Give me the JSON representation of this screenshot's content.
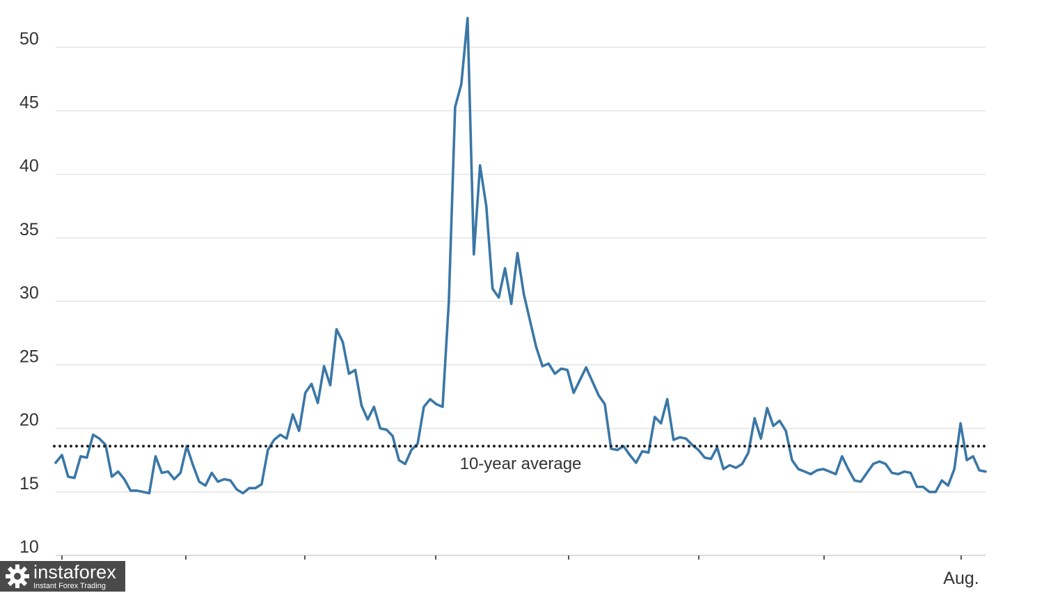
{
  "chart_data": {
    "type": "line",
    "title": "",
    "xlabel": "",
    "ylabel": "",
    "ylim": [
      10,
      52.5
    ],
    "yticks": [
      10,
      15,
      20,
      25,
      30,
      35,
      40,
      45,
      50
    ],
    "x_tick_labels": [
      "",
      "",
      "",
      "",
      "",
      "",
      "",
      "Aug."
    ],
    "grid": true,
    "legend": "none",
    "series": [
      {
        "color": "#3a77a6",
        "values": [
          17.3,
          17.9,
          16.2,
          16.1,
          17.8,
          17.7,
          19.5,
          19.2,
          18.7,
          16.2,
          16.6,
          16.0,
          15.1,
          15.1,
          15.0,
          14.9,
          17.8,
          16.5,
          16.6,
          16.0,
          16.5,
          18.6,
          17.1,
          15.8,
          15.5,
          16.5,
          15.8,
          16.0,
          15.9,
          15.2,
          14.9,
          15.3,
          15.3,
          15.6,
          18.3,
          19.1,
          19.5,
          19.2,
          21.1,
          19.8,
          22.8,
          23.5,
          22.0,
          24.9,
          23.4,
          27.8,
          26.8,
          24.3,
          24.6,
          21.8,
          20.7,
          21.7,
          20.0,
          19.9,
          19.4,
          17.5,
          17.2,
          18.3,
          18.8,
          21.7,
          22.3,
          21.9,
          21.7,
          30.0,
          45.3,
          47.1,
          52.3,
          33.7,
          40.7,
          37.5,
          31.0,
          30.3,
          32.6,
          29.8,
          33.8,
          30.6,
          28.5,
          26.4,
          24.9,
          25.1,
          24.3,
          24.7,
          24.6,
          22.8,
          23.8,
          24.8,
          23.7,
          22.6,
          21.9,
          18.4,
          18.3,
          18.6,
          17.9,
          17.3,
          18.2,
          18.1,
          20.9,
          20.4,
          22.3,
          19.1,
          19.3,
          19.2,
          18.7,
          18.3,
          17.7,
          17.6,
          18.5,
          16.8,
          17.1,
          16.9,
          17.2,
          18.1,
          20.8,
          19.2,
          21.6,
          20.2,
          20.6,
          19.8,
          17.5,
          16.8,
          16.6,
          16.4,
          16.7,
          16.8,
          16.6,
          16.4,
          17.8,
          16.8,
          15.9,
          15.8,
          16.5,
          17.2,
          17.4,
          17.2,
          16.5,
          16.4,
          16.6,
          16.5,
          15.4,
          15.4,
          15.0,
          15.0,
          15.9,
          15.5,
          16.8,
          20.4,
          17.5,
          17.8,
          16.7,
          16.6
        ]
      }
    ],
    "reference_line": {
      "value": 18.6,
      "label": "10-year average",
      "style": "dotted",
      "color": "#222222"
    }
  },
  "watermark": {
    "brand": "instaforex",
    "tagline": "Instant Forex Trading",
    "icon": "gear-logo-icon"
  }
}
